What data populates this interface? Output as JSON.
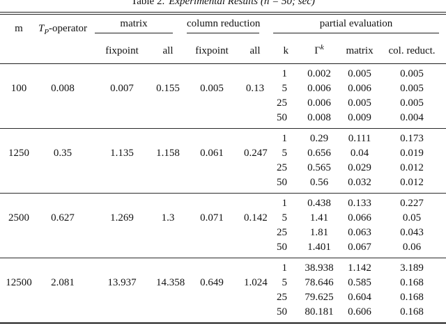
{
  "caption": {
    "label": "Table 2.",
    "title": "Experimental Results (n = 50; sec)"
  },
  "header": {
    "m": "m",
    "tp_T": "T",
    "tp_sub": "P",
    "tp_rest": "-operator",
    "group_matrix": "matrix",
    "group_colred": "column reduction",
    "group_partial": "partial evaluation",
    "sub_fixpoint1": "fixpoint",
    "sub_all1": "all",
    "sub_fixpoint2": "fixpoint",
    "sub_all2": "all",
    "sub_k": "k",
    "sub_gamma": "Γ",
    "sub_gamma_sup": "k",
    "sub_pe_matrix": "matrix",
    "sub_pe_colred": "col. reduct."
  },
  "groups": [
    {
      "m": "100",
      "tp": "0.008",
      "matrix_fixpoint": "0.007",
      "matrix_all": "0.155",
      "colred_fixpoint": "0.005",
      "colred_all": "0.13",
      "rows": [
        {
          "k": "1",
          "gamma": "0.002",
          "matrix": "0.005",
          "colred": "0.005"
        },
        {
          "k": "5",
          "gamma": "0.006",
          "matrix": "0.006",
          "colred": "0.005"
        },
        {
          "k": "25",
          "gamma": "0.006",
          "matrix": "0.005",
          "colred": "0.005"
        },
        {
          "k": "50",
          "gamma": "0.008",
          "matrix": "0.009",
          "colred": "0.004"
        }
      ]
    },
    {
      "m": "1250",
      "tp": "0.35",
      "matrix_fixpoint": "1.135",
      "matrix_all": "1.158",
      "colred_fixpoint": "0.061",
      "colred_all": "0.247",
      "rows": [
        {
          "k": "1",
          "gamma": "0.29",
          "matrix": "0.111",
          "colred": "0.173"
        },
        {
          "k": "5",
          "gamma": "0.656",
          "matrix": "0.04",
          "colred": "0.019"
        },
        {
          "k": "25",
          "gamma": "0.565",
          "matrix": "0.029",
          "colred": "0.012"
        },
        {
          "k": "50",
          "gamma": "0.56",
          "matrix": "0.032",
          "colred": "0.012"
        }
      ]
    },
    {
      "m": "2500",
      "tp": "0.627",
      "matrix_fixpoint": "1.269",
      "matrix_all": "1.3",
      "colred_fixpoint": "0.071",
      "colred_all": "0.142",
      "rows": [
        {
          "k": "1",
          "gamma": "0.438",
          "matrix": "0.133",
          "colred": "0.227"
        },
        {
          "k": "5",
          "gamma": "1.41",
          "matrix": "0.066",
          "colred": "0.05"
        },
        {
          "k": "25",
          "gamma": "1.81",
          "matrix": "0.063",
          "colred": "0.043"
        },
        {
          "k": "50",
          "gamma": "1.401",
          "matrix": "0.067",
          "colred": "0.06"
        }
      ]
    },
    {
      "m": "12500",
      "tp": "2.081",
      "matrix_fixpoint": "13.937",
      "matrix_all": "14.358",
      "colred_fixpoint": "0.649",
      "colred_all": "1.024",
      "rows": [
        {
          "k": "1",
          "gamma": "38.938",
          "matrix": "1.142",
          "colred": "3.189"
        },
        {
          "k": "5",
          "gamma": "78.646",
          "matrix": "0.585",
          "colred": "0.168"
        },
        {
          "k": "25",
          "gamma": "79.625",
          "matrix": "0.604",
          "colred": "0.168"
        },
        {
          "k": "50",
          "gamma": "80.181",
          "matrix": "0.606",
          "colred": "0.168"
        }
      ]
    }
  ]
}
